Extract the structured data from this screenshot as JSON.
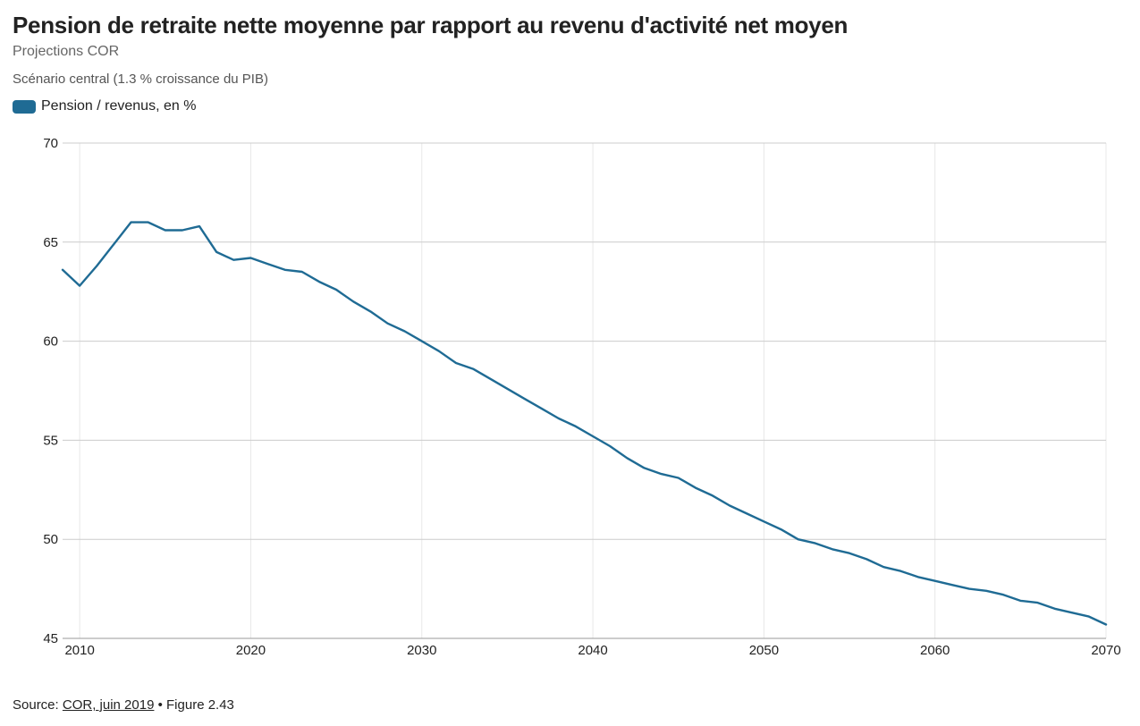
{
  "header": {
    "title": "Pension de retraite nette moyenne par rapport au revenu d'activité net moyen",
    "subtitle": "Projections COR",
    "note": "Scénario central (1.3 % croissance du PIB)"
  },
  "legend": {
    "label": "Pension / revenus, en %"
  },
  "footer": {
    "source_prefix": "Source: ",
    "source_link": "COR, juin 2019",
    "source_suffix": " • Figure 2.43"
  },
  "colors": {
    "line": "#1f6b94",
    "grid": "#cccccc",
    "vgrid": "#e8e8e8"
  },
  "chart_data": {
    "type": "line",
    "title": "Pension de retraite nette moyenne par rapport au revenu d'activité net moyen",
    "subtitle": "Projections COR",
    "xlabel": "",
    "ylabel": "",
    "xlim": [
      2009,
      2070
    ],
    "ylim": [
      45,
      70
    ],
    "x_ticks": [
      2010,
      2020,
      2030,
      2040,
      2050,
      2060,
      2070
    ],
    "y_ticks": [
      45,
      50,
      55,
      60,
      65,
      70
    ],
    "grid": true,
    "legend_position": "top-left",
    "series": [
      {
        "name": "Pension / revenus, en %",
        "x": [
          2009,
          2010,
          2011,
          2012,
          2013,
          2014,
          2015,
          2016,
          2017,
          2018,
          2019,
          2020,
          2021,
          2022,
          2023,
          2024,
          2025,
          2026,
          2027,
          2028,
          2029,
          2030,
          2031,
          2032,
          2033,
          2034,
          2035,
          2036,
          2037,
          2038,
          2039,
          2040,
          2041,
          2042,
          2043,
          2044,
          2045,
          2046,
          2047,
          2048,
          2049,
          2050,
          2051,
          2052,
          2053,
          2054,
          2055,
          2056,
          2057,
          2058,
          2059,
          2060,
          2061,
          2062,
          2063,
          2064,
          2065,
          2066,
          2067,
          2068,
          2069,
          2070
        ],
        "values": [
          63.6,
          62.8,
          63.8,
          64.9,
          66.0,
          66.0,
          65.6,
          65.6,
          65.8,
          64.5,
          64.1,
          64.2,
          63.9,
          63.6,
          63.5,
          63.0,
          62.6,
          62.0,
          61.5,
          60.9,
          60.5,
          60.0,
          59.5,
          58.9,
          58.6,
          58.1,
          57.6,
          57.1,
          56.6,
          56.1,
          55.7,
          55.2,
          54.7,
          54.1,
          53.6,
          53.3,
          53.1,
          52.6,
          52.2,
          51.7,
          51.3,
          50.9,
          50.5,
          50.0,
          49.8,
          49.5,
          49.3,
          49.0,
          48.6,
          48.4,
          48.1,
          47.9,
          47.7,
          47.5,
          47.4,
          47.2,
          46.9,
          46.8,
          46.5,
          46.3,
          46.1,
          45.7
        ]
      }
    ]
  }
}
